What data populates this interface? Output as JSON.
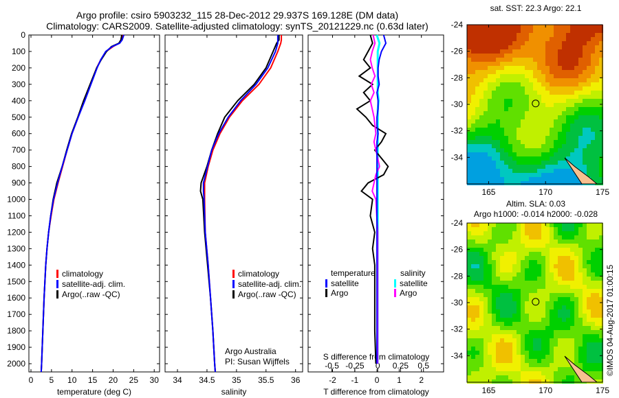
{
  "title": {
    "line1": "Argo profile: csiro 5903232_115 28-Dec-2012 29.937S 169.128E (DM data)",
    "line2": "Climatology: CARS2009. Satellite-adjusted climatology: synTS_20121229.nc (0.63d later)"
  },
  "colors": {
    "climatology": "#ff0000",
    "satellite": "#0000ff",
    "argo": "#000000",
    "sal_satellite": "#00ffff",
    "sal_argo": "#ff00ff"
  },
  "chart_data": [
    {
      "type": "line",
      "name": "temperature",
      "xlabel": "temperature (deg C)",
      "ylabel": "",
      "xlim": [
        -0.5,
        31.3
      ],
      "ylim": [
        2050,
        0
      ],
      "xticks": [
        "0",
        "5",
        "10",
        "15",
        "20",
        "25",
        "30"
      ],
      "yticks": [
        "0",
        "100",
        "200",
        "300",
        "400",
        "500",
        "600",
        "700",
        "800",
        "900",
        "1000",
        "1100",
        "1200",
        "1300",
        "1400",
        "1500",
        "1600",
        "1700",
        "1800",
        "1900",
        "2000"
      ],
      "depth": [
        0,
        30,
        50,
        70,
        100,
        150,
        200,
        300,
        400,
        500,
        600,
        700,
        800,
        900,
        1000,
        1100,
        1200,
        1300,
        1400,
        1600,
        1800,
        2000,
        2050
      ],
      "series": [
        {
          "name": "climatology",
          "values": [
            22.3,
            22.0,
            21.5,
            20.0,
            18.3,
            17.0,
            16.0,
            14.5,
            13.0,
            11.5,
            10.0,
            8.8,
            7.7,
            6.6,
            5.6,
            4.9,
            4.3,
            3.9,
            3.6,
            3.2,
            2.9,
            2.6,
            2.5
          ]
        },
        {
          "name": "satellite-adj. clim.",
          "values": [
            22.6,
            22.2,
            21.6,
            19.8,
            18.2,
            17.0,
            16.1,
            14.6,
            13.1,
            11.5,
            10.0,
            8.8,
            7.6,
            6.5,
            5.5,
            4.8,
            4.3,
            3.9,
            3.6,
            3.2,
            2.9,
            2.6,
            2.5
          ]
        },
        {
          "name": "Argo(..raw -QC)",
          "values": [
            22.1,
            21.9,
            21.4,
            19.6,
            18.4,
            17.1,
            16.0,
            14.4,
            12.8,
            11.4,
            9.9,
            8.7,
            7.6,
            6.3,
            5.4,
            4.8,
            4.3,
            3.9,
            3.6,
            3.2,
            2.9,
            2.6,
            2.5
          ]
        }
      ],
      "legend": [
        "climatology",
        "satellite-adj. clim.",
        "Argo(..raw -QC)"
      ]
    },
    {
      "type": "line",
      "name": "salinity",
      "xlabel": "salinity",
      "xlim": [
        33.79,
        36.12
      ],
      "ylim": [
        2050,
        0
      ],
      "xticks": [
        "34",
        "34.5",
        "35",
        "35.5",
        "36"
      ],
      "depth": [
        0,
        30,
        50,
        100,
        200,
        300,
        400,
        500,
        600,
        700,
        800,
        900,
        950,
        1000,
        1200,
        1400,
        1600,
        1800,
        2000,
        2050
      ],
      "series": [
        {
          "name": "climatology",
          "values": [
            35.76,
            35.76,
            35.75,
            35.7,
            35.58,
            35.38,
            35.1,
            34.88,
            34.72,
            34.6,
            34.52,
            34.46,
            34.46,
            34.46,
            34.47,
            34.52,
            34.56,
            34.6,
            34.63,
            34.64
          ]
        },
        {
          "name": "satellite-adj. clim.",
          "values": [
            35.7,
            35.7,
            35.7,
            35.66,
            35.53,
            35.33,
            35.07,
            34.86,
            34.7,
            34.58,
            34.51,
            34.44,
            34.44,
            34.45,
            34.47,
            34.52,
            34.56,
            34.6,
            34.63,
            34.64
          ]
        },
        {
          "name": "Argo(..raw -QC)",
          "values": [
            35.72,
            35.72,
            35.68,
            35.62,
            35.5,
            35.3,
            35.02,
            34.8,
            34.68,
            34.58,
            34.5,
            34.4,
            34.39,
            34.43,
            34.46,
            34.51,
            34.56,
            34.6,
            34.63,
            34.64
          ]
        }
      ],
      "legend": [
        "climatology",
        "satellite-adj. clim.",
        "Argo(..raw -QC)"
      ],
      "annotation": [
        "Argo Australia",
        "PI: Susan Wijffels"
      ]
    },
    {
      "type": "line",
      "name": "difference",
      "xlabel": "T difference from climatology",
      "xlim": [
        -3.1,
        3.0
      ],
      "xticks": [
        "-2",
        "-1",
        "0",
        "1",
        "2"
      ],
      "x2label": "S difference from climatology",
      "x2lim": [
        -0.76,
        0.72
      ],
      "x2ticks": [
        "-0.5",
        "-0.25",
        "0",
        "0.25",
        "0.5"
      ],
      "ylim": [
        2050,
        0
      ],
      "depth": [
        0,
        50,
        100,
        150,
        200,
        250,
        300,
        350,
        400,
        450,
        500,
        550,
        600,
        650,
        700,
        750,
        800,
        850,
        900,
        950,
        1000,
        1100,
        1200,
        1300,
        1400,
        1600,
        1800,
        2000
      ],
      "series": [
        {
          "name": "temperature satellite",
          "values": [
            0.3,
            0.4,
            0.2,
            0.1,
            0.05,
            0.05,
            0.1,
            0,
            0.05,
            0.05,
            0.0,
            0.0,
            0.05,
            0.0,
            0.0,
            0.0,
            0.0,
            0.0,
            0.0,
            0.0,
            0.0,
            0.0,
            0.0,
            0.0,
            0.0,
            0.0,
            0.0,
            0.0
          ]
        },
        {
          "name": "temperature Argo",
          "values": [
            -0.3,
            -0.2,
            -0.4,
            -0.6,
            -0.3,
            -0.8,
            -0.2,
            -0.6,
            -0.3,
            -0.9,
            -0.5,
            -0.2,
            0.4,
            0.2,
            -0.1,
            0.2,
            0.5,
            0.3,
            -0.4,
            -0.7,
            -0.2,
            -0.3,
            -0.1,
            -0.2,
            -0.1,
            -0.1,
            -0.1,
            -0.05
          ]
        },
        {
          "name": "salinity satellite",
          "values": [
            -0.01,
            0.02,
            0.0,
            0.0,
            0.0,
            0.0,
            0.0,
            0.0,
            0.01,
            0.0,
            0.0,
            0.0,
            0.0,
            0.0,
            0.0,
            0.0,
            0.0,
            0.0,
            0.0,
            0.0,
            0.0,
            0.0,
            0.0,
            0.0,
            0.0,
            0.0,
            0.0,
            0.0
          ]
        },
        {
          "name": "salinity Argo",
          "values": [
            -0.05,
            -0.03,
            -0.06,
            -0.08,
            -0.06,
            -0.03,
            -0.07,
            -0.04,
            -0.08,
            -0.06,
            -0.04,
            -0.03,
            -0.02,
            -0.04,
            -0.02,
            0.0,
            0.02,
            -0.02,
            -0.04,
            -0.06,
            -0.02,
            -0.01,
            0.0,
            0.0,
            0.0,
            0.0,
            0.0,
            0.0
          ]
        }
      ],
      "legend": {
        "temperature_header": "temperature",
        "salinity_header": "salinity",
        "t_sat": "satellite",
        "t_argo": "Argo",
        "s_sat": "satellite",
        "s_argo": "Argo"
      }
    },
    {
      "type": "heatmap",
      "name": "sst-map",
      "title": "sat. SST: 22.3 Argo: 22.1",
      "xlim": [
        163.1,
        175
      ],
      "ylim": [
        -36,
        -24
      ],
      "xticks": [
        "165",
        "170",
        "175"
      ],
      "yticks": [
        "-24",
        "-26",
        "-28",
        "-30",
        "-32",
        "-34"
      ],
      "marker": {
        "lon": 169.128,
        "lat": -29.937
      }
    },
    {
      "type": "heatmap",
      "name": "sla-map",
      "title": [
        "Altim. SLA: 0.03",
        "Argo h1000: -0.014 h2000: -0.028"
      ],
      "xlim": [
        163.1,
        175
      ],
      "ylim": [
        -36,
        -24
      ],
      "xticks": [
        "165",
        "170",
        "175"
      ],
      "yticks": [
        "-24",
        "-26",
        "-28",
        "-30",
        "-32",
        "-34"
      ],
      "marker": {
        "lon": 169.128,
        "lat": -29.937
      }
    }
  ],
  "credit": "©IMOS 04-Aug-2017 01:00:15"
}
